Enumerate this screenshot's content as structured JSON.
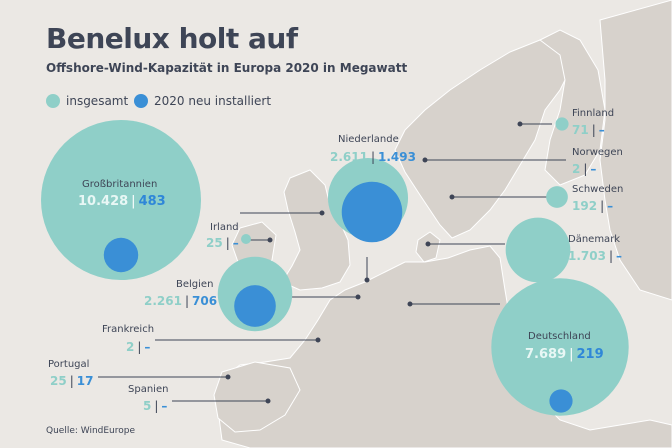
{
  "header": {
    "title": "Benelux holt auf",
    "subtitle": "Offshore-Wind-Kapazität in Europa 2020 in Megawatt"
  },
  "legend": {
    "total_label": "insgesamt",
    "new_label": "2020 neu installiert"
  },
  "source": "Quelle: WindEurope",
  "colors": {
    "total": "#8fcfc8",
    "new": "#3a8fd6",
    "land": "#d7d2cc",
    "sea": "#ebe8e4",
    "line": "#3e4556"
  },
  "countries": [
    {
      "name": "Großbritannien",
      "total": "10.428",
      "new": "483",
      "total_mw": 10428,
      "new_mw": 483
    },
    {
      "name": "Irland",
      "total": "25",
      "new": "–",
      "total_mw": 25,
      "new_mw": 0
    },
    {
      "name": "Niederlande",
      "total": "2.611",
      "new": "1.493",
      "total_mw": 2611,
      "new_mw": 1493
    },
    {
      "name": "Belgien",
      "total": "2.261",
      "new": "706",
      "total_mw": 2261,
      "new_mw": 706
    },
    {
      "name": "Frankreich",
      "total": "2",
      "new": "–",
      "total_mw": 2,
      "new_mw": 0
    },
    {
      "name": "Portugal",
      "total": "25",
      "new": "17",
      "total_mw": 25,
      "new_mw": 17
    },
    {
      "name": "Spanien",
      "total": "5",
      "new": "–",
      "total_mw": 5,
      "new_mw": 0
    },
    {
      "name": "Finnland",
      "total": "71",
      "new": "–",
      "total_mw": 71,
      "new_mw": 0
    },
    {
      "name": "Norwegen",
      "total": "2",
      "new": "–",
      "total_mw": 2,
      "new_mw": 0
    },
    {
      "name": "Schweden",
      "total": "192",
      "new": "–",
      "total_mw": 192,
      "new_mw": 0
    },
    {
      "name": "Dänemark",
      "total": "1.703",
      "new": "–",
      "total_mw": 1703,
      "new_mw": 0
    },
    {
      "name": "Deutschland",
      "total": "7.689",
      "new": "219",
      "total_mw": 7689,
      "new_mw": 219
    }
  ]
}
